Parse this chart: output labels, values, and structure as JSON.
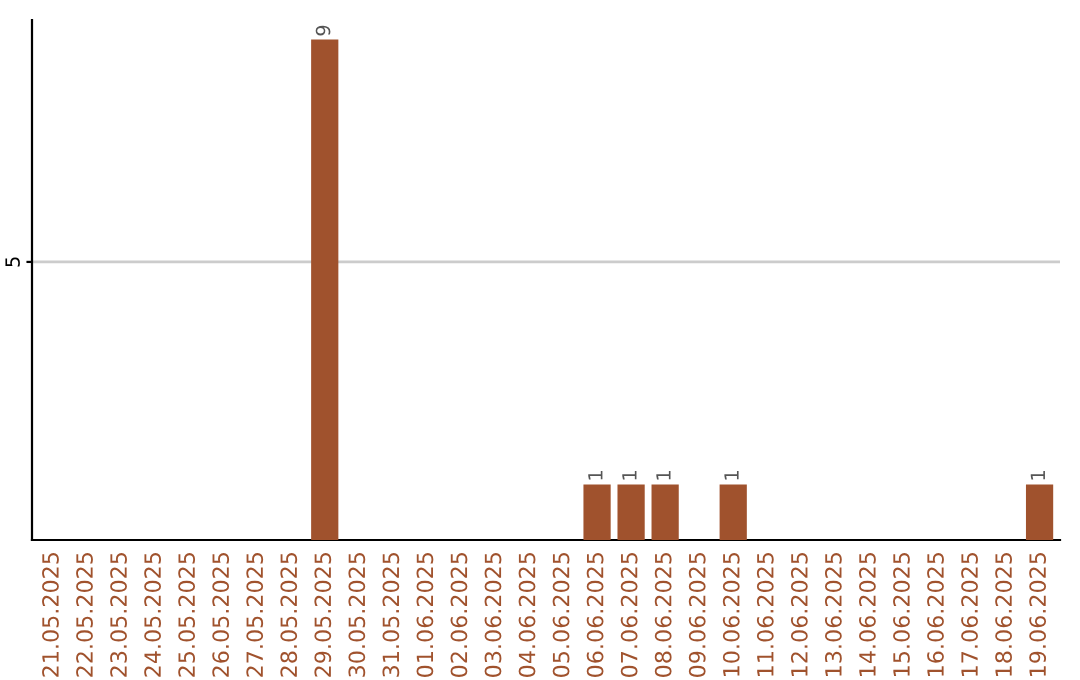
{
  "chart_data": {
    "type": "bar",
    "categories": [
      "21.05.2025",
      "22.05.2025",
      "23.05.2025",
      "24.05.2025",
      "25.05.2025",
      "26.05.2025",
      "27.05.2025",
      "28.05.2025",
      "29.05.2025",
      "30.05.2025",
      "31.05.2025",
      "01.06.2025",
      "02.06.2025",
      "03.06.2025",
      "04.06.2025",
      "05.06.2025",
      "06.06.2025",
      "07.06.2025",
      "08.06.2025",
      "09.06.2025",
      "10.06.2025",
      "11.06.2025",
      "12.06.2025",
      "13.06.2025",
      "14.06.2025",
      "15.06.2025",
      "16.06.2025",
      "17.06.2025",
      "18.06.2025",
      "19.06.2025"
    ],
    "values": [
      0,
      0,
      0,
      0,
      0,
      0,
      0,
      0,
      9,
      0,
      0,
      0,
      0,
      0,
      0,
      0,
      1,
      1,
      1,
      0,
      1,
      0,
      0,
      0,
      0,
      0,
      0,
      0,
      0,
      1
    ],
    "value_labels": [
      null,
      null,
      null,
      null,
      null,
      null,
      null,
      null,
      "9",
      null,
      null,
      null,
      null,
      null,
      null,
      null,
      "1",
      "1",
      "1",
      null,
      "1",
      null,
      null,
      null,
      null,
      null,
      null,
      null,
      null,
      "1"
    ],
    "color": "#a0522d",
    "ylim": [
      0,
      9.35
    ],
    "yticks": [
      5
    ],
    "grid": "y"
  }
}
